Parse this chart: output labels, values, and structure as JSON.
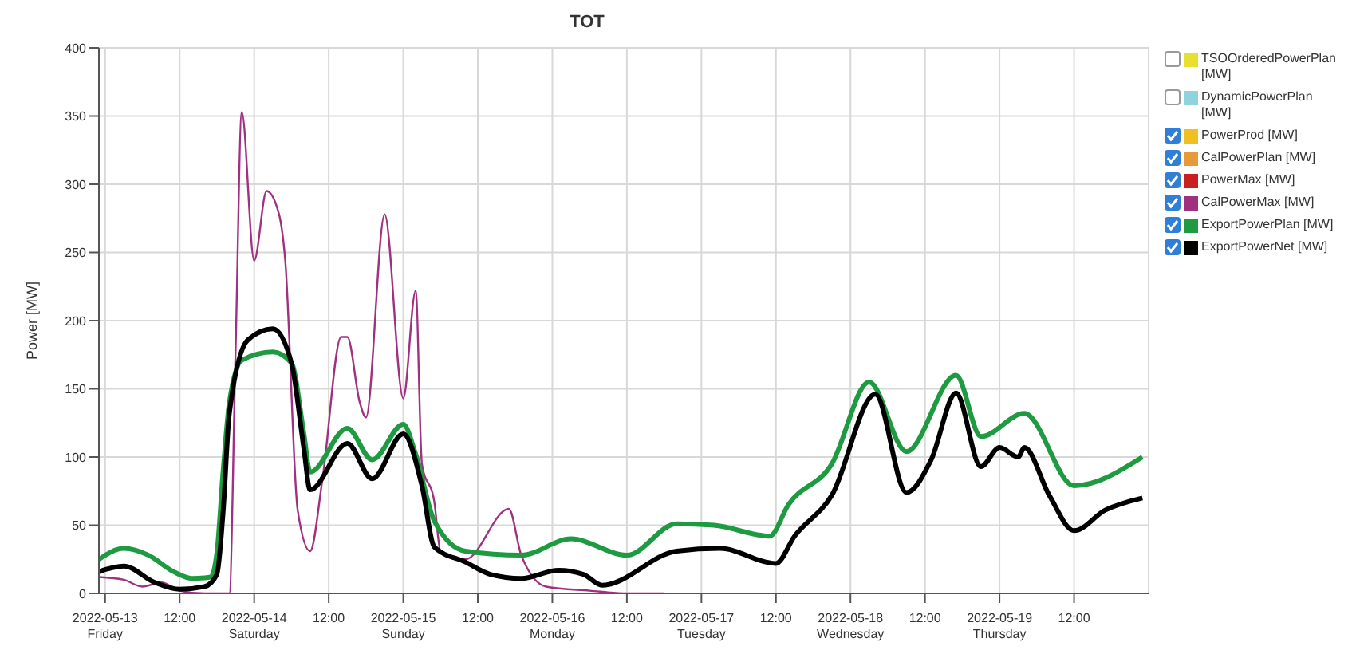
{
  "chart_data": {
    "type": "line",
    "title": "TOT",
    "ylabel": "Power [MW]",
    "xlim": [
      "2022-05-12T23:00",
      "2022-05-20T00:00"
    ],
    "xticks": [
      {
        "value": "2022-05-13T00:00",
        "label": "2022-05-13\nFriday"
      },
      {
        "value": "2022-05-13T12:00",
        "label": "12:00"
      },
      {
        "value": "2022-05-14T00:00",
        "label": "2022-05-14\nSaturday"
      },
      {
        "value": "2022-05-14T12:00",
        "label": "12:00"
      },
      {
        "value": "2022-05-15T00:00",
        "label": "2022-05-15\nSunday"
      },
      {
        "value": "2022-05-15T12:00",
        "label": "12:00"
      },
      {
        "value": "2022-05-16T00:00",
        "label": "2022-05-16\nMonday"
      },
      {
        "value": "2022-05-16T12:00",
        "label": "12:00"
      },
      {
        "value": "2022-05-17T00:00",
        "label": "2022-05-17\nTuesday"
      },
      {
        "value": "2022-05-17T12:00",
        "label": "12:00"
      },
      {
        "value": "2022-05-18T00:00",
        "label": "2022-05-18\nWednesday"
      },
      {
        "value": "2022-05-18T12:00",
        "label": "12:00"
      },
      {
        "value": "2022-05-19T00:00",
        "label": "2022-05-19\nThursday"
      },
      {
        "value": "2022-05-19T12:00",
        "label": "12:00"
      }
    ],
    "ylim": [
      0,
      400
    ],
    "yticks": [
      0,
      50,
      100,
      150,
      200,
      250,
      300,
      350,
      400
    ],
    "grid": true,
    "legend": "right",
    "marker": "none",
    "line_style": "solid",
    "series": [
      {
        "name": "TSOOrderedPowerPlan [MW]",
        "color": "#e8e030"
      },
      {
        "name": "DynamicPowerPlan [MW]",
        "color": "#8fd3df"
      },
      {
        "name": "PowerProd [MW]",
        "color": "#f0c020"
      },
      {
        "name": "CalPowerPlan [MW]",
        "color": "#e89a3a"
      },
      {
        "name": "PowerMax [MW]",
        "color": "#c82020"
      },
      {
        "name": "CalPowerMax [MW]",
        "color": "#a03080",
        "x": [
          "2022-05-12T23:00",
          "2022-05-13T03:00",
          "2022-05-13T06:00",
          "2022-05-13T09:00",
          "2022-05-13T12:00",
          "2022-05-13T16:00",
          "2022-05-13T20:00",
          "2022-05-13T21:00",
          "2022-05-13T22:00",
          "2022-05-14T00:00",
          "2022-05-14T02:00",
          "2022-05-14T04:00",
          "2022-05-14T05:00",
          "2022-05-14T07:00",
          "2022-05-14T09:00",
          "2022-05-14T11:00",
          "2022-05-14T14:00",
          "2022-05-14T15:00",
          "2022-05-14T17:00",
          "2022-05-14T18:00",
          "2022-05-14T21:00",
          "2022-05-15T00:00",
          "2022-05-15T02:00",
          "2022-05-15T03:00",
          "2022-05-15T05:00",
          "2022-05-15T06:00",
          "2022-05-15T10:00",
          "2022-05-15T17:00",
          "2022-05-15T19:00",
          "2022-05-15T23:00",
          "2022-05-16T06:00",
          "2022-05-16T12:00",
          "2022-05-16T18:00"
        ],
        "values": [
          12,
          10,
          5,
          8,
          2,
          0,
          0,
          177,
          353,
          244,
          295,
          278,
          244,
          61,
          31,
          84,
          188,
          188,
          140,
          129,
          278,
          143,
          222,
          95,
          67,
          31,
          25,
          62,
          28,
          5,
          2,
          0,
          0
        ]
      },
      {
        "name": "ExportPowerPlan [MW]",
        "color": "#1e9a40",
        "x": [
          "2022-05-12T23:00",
          "2022-05-13T03:00",
          "2022-05-13T07:00",
          "2022-05-13T11:00",
          "2022-05-13T14:00",
          "2022-05-13T17:00",
          "2022-05-13T18:00",
          "2022-05-13T19:00",
          "2022-05-13T20:00",
          "2022-05-13T22:00",
          "2022-05-14T03:00",
          "2022-05-14T06:00",
          "2022-05-14T08:00",
          "2022-05-14T09:00",
          "2022-05-14T15:00",
          "2022-05-14T19:00",
          "2022-05-15T00:00",
          "2022-05-15T02:00",
          "2022-05-15T05:00",
          "2022-05-15T10:00",
          "2022-05-15T19:00",
          "2022-05-16T03:00",
          "2022-05-16T12:00",
          "2022-05-16T20:00",
          "2022-05-17T02:00",
          "2022-05-17T11:00",
          "2022-05-17T14:00",
          "2022-05-17T21:00",
          "2022-05-18T03:00",
          "2022-05-18T09:00",
          "2022-05-18T17:00",
          "2022-05-18T21:00",
          "2022-05-19T04:00",
          "2022-05-19T12:00",
          "2022-05-19T23:00"
        ],
        "values": [
          25,
          33,
          28,
          16,
          11,
          12,
          30,
          90,
          140,
          171,
          177,
          169,
          117,
          89,
          121,
          98,
          124,
          102,
          53,
          31,
          28,
          40,
          28,
          51,
          50,
          42,
          65,
          95,
          155,
          104,
          160,
          115,
          132,
          79,
          100
        ]
      },
      {
        "name": "ExportPowerNet [MW]",
        "color": "#000000",
        "x": [
          "2022-05-12T23:00",
          "2022-05-13T03:00",
          "2022-05-13T08:00",
          "2022-05-13T12:00",
          "2022-05-13T16:00",
          "2022-05-13T18:00",
          "2022-05-13T19:00",
          "2022-05-13T20:00",
          "2022-05-13T23:00",
          "2022-05-14T03:00",
          "2022-05-14T06:00",
          "2022-05-14T08:00",
          "2022-05-14T09:00",
          "2022-05-14T15:00",
          "2022-05-14T19:00",
          "2022-05-15T00:00",
          "2022-05-15T03:00",
          "2022-05-15T05:00",
          "2022-05-15T10:00",
          "2022-05-15T14:00",
          "2022-05-15T19:00",
          "2022-05-16T01:00",
          "2022-05-16T05:00",
          "2022-05-16T08:00",
          "2022-05-16T20:00",
          "2022-05-17T03:00",
          "2022-05-17T12:00",
          "2022-05-17T15:00",
          "2022-05-17T21:00",
          "2022-05-18T04:00",
          "2022-05-18T09:00",
          "2022-05-18T13:00",
          "2022-05-18T17:00",
          "2022-05-18T21:00",
          "2022-05-19T00:00",
          "2022-05-19T03:00",
          "2022-05-19T04:00",
          "2022-05-19T08:00",
          "2022-05-19T12:00",
          "2022-05-19T17:00",
          "2022-05-19T23:00"
        ],
        "values": [
          16,
          20,
          8,
          3,
          5,
          14,
          60,
          132,
          186,
          194,
          169,
          106,
          76,
          110,
          84,
          117,
          79,
          34,
          23,
          14,
          11,
          17,
          14,
          6,
          31,
          33,
          22,
          42,
          72,
          146,
          74,
          98,
          147,
          93,
          107,
          100,
          107,
          72,
          46,
          61,
          70
        ]
      }
    ]
  }
}
